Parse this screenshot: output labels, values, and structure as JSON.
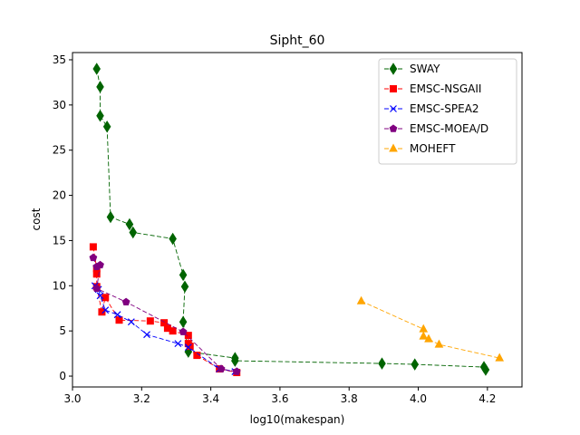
{
  "chart_data": {
    "type": "line",
    "title": "Sipht_60",
    "xlabel": "log10(makespan)",
    "ylabel": "cost",
    "xlim": [
      3.0,
      4.3
    ],
    "ylim": [
      -1.2,
      35.8
    ],
    "xticks": [
      "3.0",
      "3.2",
      "3.4",
      "3.6",
      "3.8",
      "4.0",
      "4.2"
    ],
    "yticks": [
      "0",
      "5",
      "10",
      "15",
      "20",
      "25",
      "30",
      "35"
    ],
    "xtick_values": [
      3.0,
      3.2,
      3.4,
      3.6,
      3.8,
      4.0,
      4.2
    ],
    "ytick_values": [
      0,
      5,
      10,
      15,
      20,
      25,
      30,
      35
    ],
    "grid": false,
    "legend_position": "top-right",
    "series": [
      {
        "name": "SWAY",
        "color": "#006400",
        "marker": "diamond",
        "x": [
          3.07,
          3.08,
          3.08,
          3.1,
          3.11,
          3.165,
          3.175,
          3.29,
          3.32,
          3.325,
          3.32,
          3.335,
          3.47,
          3.47,
          3.895,
          3.99,
          4.19,
          4.195
        ],
        "y": [
          34.0,
          32.0,
          28.8,
          27.6,
          17.6,
          16.8,
          15.9,
          15.2,
          11.2,
          9.9,
          6.0,
          2.7,
          2.0,
          1.7,
          1.4,
          1.3,
          1.0,
          0.7
        ]
      },
      {
        "name": "EMSC-NSGAII",
        "color": "#ff0000",
        "marker": "square",
        "x": [
          3.06,
          3.07,
          3.07,
          3.07,
          3.085,
          3.095,
          3.135,
          3.225,
          3.265,
          3.275,
          3.29,
          3.335,
          3.335,
          3.34,
          3.36,
          3.425,
          3.475
        ],
        "y": [
          14.3,
          11.9,
          11.3,
          9.9,
          7.1,
          8.7,
          6.2,
          6.1,
          5.9,
          5.3,
          5.0,
          4.5,
          3.6,
          3.3,
          2.3,
          0.8,
          0.4
        ]
      },
      {
        "name": "EMSC-SPEA2",
        "color": "#0000ff",
        "marker": "x",
        "x": [
          3.065,
          3.075,
          3.08,
          3.095,
          3.13,
          3.17,
          3.215,
          3.305,
          3.335,
          3.425,
          3.47
        ],
        "y": [
          10.0,
          9.6,
          8.9,
          7.3,
          6.8,
          6.0,
          4.6,
          3.6,
          3.2,
          0.8,
          0.5
        ]
      },
      {
        "name": "EMSC-MOEA/D",
        "color": "#800080",
        "marker": "pentagon",
        "x": [
          3.06,
          3.07,
          3.08,
          3.07,
          3.155,
          3.32,
          3.43,
          3.475
        ],
        "y": [
          13.1,
          12.1,
          12.3,
          9.7,
          8.2,
          4.9,
          0.8,
          0.5
        ]
      },
      {
        "name": "MOHEFT",
        "color": "#ffa500",
        "marker": "triangle",
        "x": [
          3.835,
          4.015,
          4.015,
          4.03,
          4.06,
          4.235
        ],
        "y": [
          8.3,
          5.2,
          4.4,
          4.1,
          3.5,
          2.0
        ]
      }
    ]
  }
}
